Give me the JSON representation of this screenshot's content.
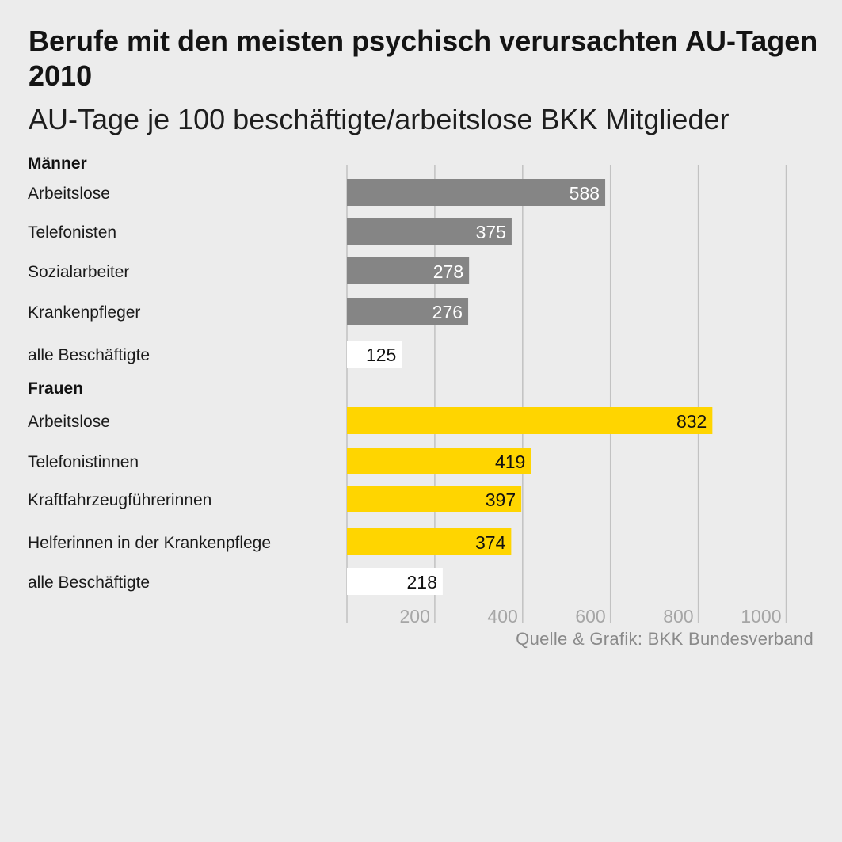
{
  "title": "Berufe mit den meisten psychisch verursachten AU-Tagen 2010",
  "subtitle": "AU-Tage je 100 beschäftigte/arbeitslose BKK Mitglieder",
  "source": "Quelle & Grafik: BKK Bundesverband",
  "colors": {
    "background": "#ececec",
    "men_bar": "#858585",
    "women_bar": "#ffd500",
    "total_bar": "#ffffff",
    "gridline": "#c2c2c2",
    "tick_label": "#a6a6a6"
  },
  "chart_data": {
    "type": "bar",
    "orientation": "horizontal",
    "xlim": [
      0,
      1000
    ],
    "ticks": [
      200,
      400,
      600,
      800,
      1000
    ],
    "grid": true,
    "groups": [
      {
        "name": "Männer",
        "items": [
          {
            "label": "Arbeitslose",
            "value": 588,
            "kind": "men"
          },
          {
            "label": "Telefonisten",
            "value": 375,
            "kind": "men"
          },
          {
            "label": "Sozialarbeiter",
            "value": 278,
            "kind": "men"
          },
          {
            "label": "Krankenpfleger",
            "value": 276,
            "kind": "men"
          },
          {
            "label": "alle Beschäftigte",
            "value": 125,
            "kind": "total"
          }
        ]
      },
      {
        "name": "Frauen",
        "items": [
          {
            "label": "Arbeitslose",
            "value": 832,
            "kind": "women"
          },
          {
            "label": "Telefonistinnen",
            "value": 419,
            "kind": "women"
          },
          {
            "label": "Kraftfahrzeugführerinnen",
            "value": 397,
            "kind": "women"
          },
          {
            "label": "Helferinnen in der Krankenpflege",
            "value": 374,
            "kind": "women"
          },
          {
            "label": "alle Beschäftigte",
            "value": 218,
            "kind": "total"
          }
        ]
      }
    ]
  }
}
